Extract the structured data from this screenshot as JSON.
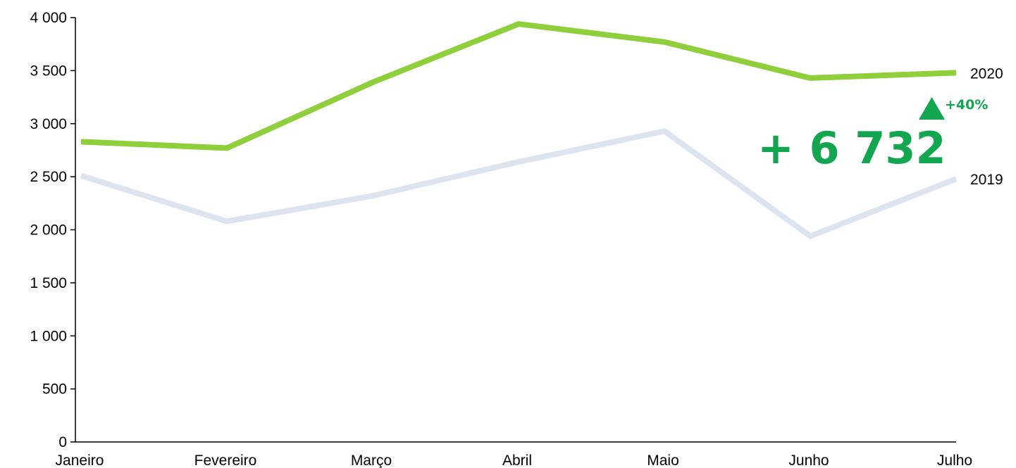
{
  "chart_data": {
    "type": "line",
    "categories": [
      "Janeiro",
      "Fevereiro",
      "Março",
      "Abril",
      "Maio",
      "Junho",
      "Julho"
    ],
    "y_ticks": [
      0,
      500,
      1000,
      1500,
      2000,
      2500,
      3000,
      3500,
      4000
    ],
    "y_tick_labels": [
      "0",
      "500",
      "1 000",
      "1 500",
      "2 000",
      "2 500",
      "3 000",
      "3 500",
      "4 000"
    ],
    "ylim": [
      0,
      4000
    ],
    "grid": false,
    "series": [
      {
        "name": "2019",
        "values": [
          2510,
          2080,
          2320,
          2640,
          2930,
          1940,
          2480
        ],
        "color": "#dde3ef"
      },
      {
        "name": "2020",
        "values": [
          2830,
          2770,
          3390,
          3940,
          3770,
          3430,
          3480
        ],
        "color": "#8fcf3c"
      }
    ],
    "annotations": {
      "total_delta": "+ 6 732",
      "percent_delta": "+40%",
      "accent_color": "#12a650",
      "icon": "triangle-up-icon"
    }
  }
}
